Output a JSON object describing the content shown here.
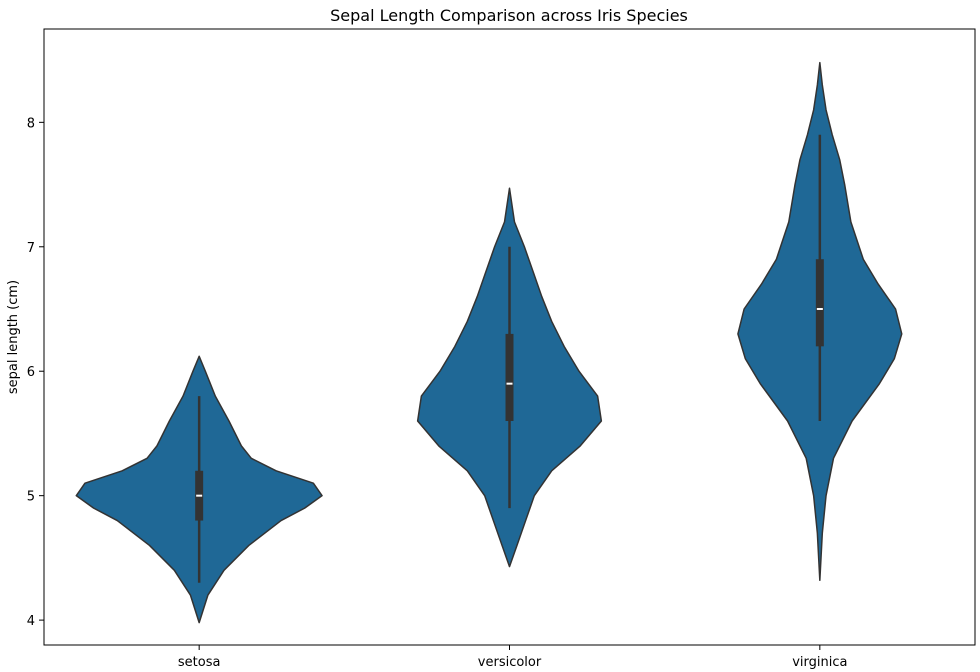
{
  "chart_data": {
    "type": "violin",
    "title": "Sepal Length Comparison across Iris Species",
    "xlabel": "",
    "ylabel": "sepal length (cm)",
    "categories": [
      "setosa",
      "versicolor",
      "virginica"
    ],
    "ylim": [
      3.8,
      8.75
    ],
    "yticks": [
      4,
      5,
      6,
      7,
      8
    ],
    "grid": false,
    "color": "#1f6896",
    "edge_color": "#333333",
    "violins": [
      {
        "category": "setosa",
        "whisker": [
          4.3,
          5.8
        ],
        "q1": 4.8,
        "median": 5.0,
        "q3": 5.2,
        "extent": [
          3.98,
          6.12
        ],
        "density": [
          [
            3.98,
            0.0
          ],
          [
            4.2,
            0.07
          ],
          [
            4.4,
            0.2
          ],
          [
            4.6,
            0.4
          ],
          [
            4.8,
            0.66
          ],
          [
            4.9,
            0.85
          ],
          [
            5.0,
            0.99
          ],
          [
            5.1,
            0.92
          ],
          [
            5.2,
            0.62
          ],
          [
            5.3,
            0.42
          ],
          [
            5.4,
            0.34
          ],
          [
            5.6,
            0.24
          ],
          [
            5.8,
            0.13
          ],
          [
            6.0,
            0.05
          ],
          [
            6.12,
            0.0
          ]
        ]
      },
      {
        "category": "versicolor",
        "whisker": [
          4.9,
          7.0
        ],
        "q1": 5.6,
        "median": 5.9,
        "q3": 6.3,
        "extent": [
          4.43,
          7.47
        ],
        "density": [
          [
            4.43,
            0.0
          ],
          [
            4.6,
            0.06
          ],
          [
            4.8,
            0.13
          ],
          [
            5.0,
            0.2
          ],
          [
            5.2,
            0.34
          ],
          [
            5.4,
            0.57
          ],
          [
            5.6,
            0.74
          ],
          [
            5.8,
            0.71
          ],
          [
            6.0,
            0.56
          ],
          [
            6.2,
            0.44
          ],
          [
            6.4,
            0.34
          ],
          [
            6.6,
            0.26
          ],
          [
            6.8,
            0.19
          ],
          [
            7.0,
            0.12
          ],
          [
            7.2,
            0.04
          ],
          [
            7.47,
            0.0
          ]
        ]
      },
      {
        "category": "virginica",
        "whisker": [
          5.6,
          7.9
        ],
        "q1": 6.2,
        "median": 6.5,
        "q3": 6.9,
        "extent": [
          4.32,
          8.48
        ],
        "density": [
          [
            4.32,
            0.0
          ],
          [
            4.7,
            0.02
          ],
          [
            5.0,
            0.05
          ],
          [
            5.3,
            0.11
          ],
          [
            5.6,
            0.26
          ],
          [
            5.9,
            0.48
          ],
          [
            6.1,
            0.6
          ],
          [
            6.3,
            0.66
          ],
          [
            6.5,
            0.61
          ],
          [
            6.7,
            0.47
          ],
          [
            6.9,
            0.35
          ],
          [
            7.2,
            0.25
          ],
          [
            7.5,
            0.2
          ],
          [
            7.7,
            0.16
          ],
          [
            7.9,
            0.1
          ],
          [
            8.1,
            0.05
          ],
          [
            8.3,
            0.02
          ],
          [
            8.48,
            0.0
          ]
        ]
      }
    ]
  }
}
